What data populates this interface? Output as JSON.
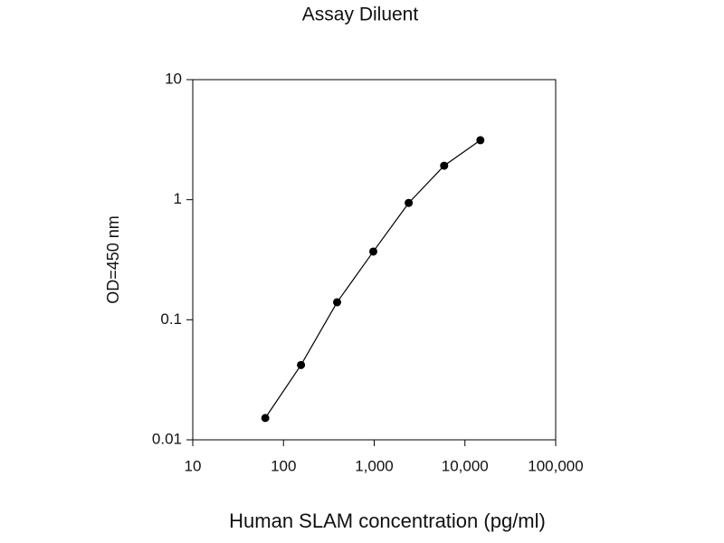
{
  "chart_data": {
    "type": "line",
    "title": "Assay Diluent",
    "x_label": "Human SLAM concentration (pg/ml)",
    "y_label": "OD=450 nm",
    "x": [
      63,
      156,
      390,
      977,
      2400,
      5900,
      14800
    ],
    "values": [
      0.0152,
      0.042,
      0.14,
      0.37,
      0.94,
      1.92,
      3.13
    ],
    "color": "#000000",
    "xscale": "log",
    "yscale": "log",
    "xlim": [
      10,
      100000
    ],
    "xticks": [
      10,
      100,
      {
        "value": 1000,
        "label": "1,000"
      },
      {
        "value": 10000,
        "label": "10,000"
      },
      {
        "value": 100000,
        "label": "100,000"
      }
    ],
    "ylim": [
      0.01,
      10
    ],
    "yticks": [
      0.01,
      0.1,
      1,
      10
    ]
  }
}
